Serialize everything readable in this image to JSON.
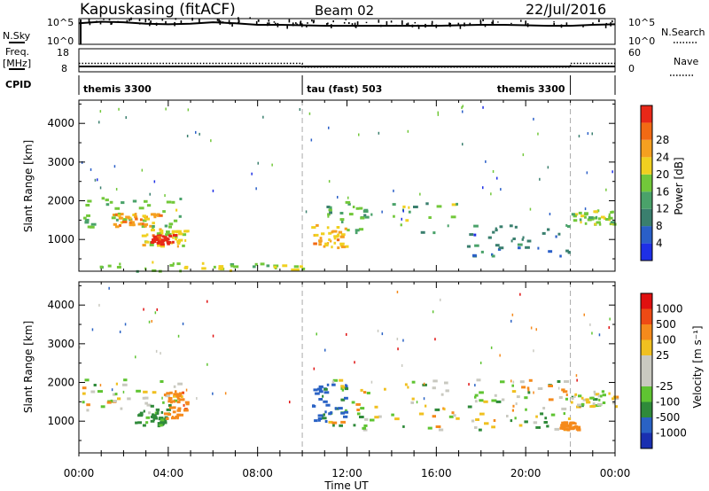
{
  "header": {
    "station": "Kapuskasing (fitACF)",
    "beam": "Beam 02",
    "date": "22/Jul/2016"
  },
  "strips": {
    "nsky_label": "N.Sky",
    "nsky_ticks": [
      "10^5",
      "10^0"
    ],
    "nsearch_label": "N.Search",
    "nsearch_ticks": [
      "10^5",
      "10^0"
    ],
    "freq_label": "Freq.",
    "freq_unit": "[MHz]",
    "freq_ticks": [
      "18",
      "8"
    ],
    "nave_label": "Nave",
    "nave_ticks": [
      "60",
      "0"
    ],
    "cpid_label": "CPID",
    "cpid_segments": [
      {
        "label": "themis 3300",
        "start_hour": 0,
        "end_hour": 10
      },
      {
        "label": "tau (fast) 503",
        "start_hour": 10,
        "end_hour": 22
      },
      {
        "label": "themis 3300",
        "start_hour": 22,
        "end_hour": 24
      }
    ]
  },
  "axes": {
    "xlabel": "Time UT",
    "ylabel_top": "Slant Range [km]",
    "ylabel_bottom": "Slant Range [km]",
    "xticks": [
      "00:00",
      "04:00",
      "08:00",
      "12:00",
      "16:00",
      "20:00",
      "00:00"
    ],
    "yticks": [
      "1000",
      "2000",
      "3000",
      "4000"
    ]
  },
  "colorbars": {
    "power": {
      "label": "Power [dB]",
      "ticks": [
        "4",
        "8",
        "12",
        "16",
        "20",
        "24",
        "28"
      ],
      "colors": [
        "#1e2fe6",
        "#2a5fc8",
        "#3a7f6e",
        "#4aa26a",
        "#72c83a",
        "#f0d020",
        "#f5a020",
        "#f26a14",
        "#e82818"
      ]
    },
    "velocity": {
      "label": "Velocity [m s⁻¹]",
      "ticks": [
        "1000",
        "500",
        "100",
        "25",
        "-25",
        "-100",
        "-500",
        "-1000"
      ],
      "colors": [
        "#1a2fb0",
        "#2a62c4",
        "#2f8a3a",
        "#5fc432",
        "#c9c9c0",
        "#c9c9c0",
        "#f0c020",
        "#f58a1c",
        "#ee4a14",
        "#e01010"
      ]
    }
  },
  "chart_data": [
    {
      "type": "line",
      "title": "N.Sky / N.Search",
      "x_unit": "hour UT",
      "xlim": [
        0,
        24
      ],
      "series": [
        {
          "name": "N.Sky",
          "x": [
            0,
            1,
            2,
            3,
            4,
            5,
            6,
            7,
            8,
            9,
            10,
            11,
            12,
            13,
            14,
            15,
            16,
            17,
            18,
            19,
            20,
            21,
            22,
            23,
            24
          ],
          "values": [
            4.1,
            4.4,
            4.3,
            4.0,
            3.9,
            4.0,
            4.3,
            4.1,
            3.8,
            3.8,
            3.7,
            3.6,
            3.6,
            3.6,
            3.6,
            3.6,
            3.6,
            3.7,
            3.8,
            3.8,
            3.7,
            3.6,
            3.6,
            3.8,
            3.9
          ]
        }
      ]
    },
    {
      "type": "line",
      "title": "Freq / Nave",
      "xlim": [
        0,
        24
      ],
      "series": [
        {
          "name": "Freq.",
          "x": [
            0,
            24
          ],
          "values": [
            10.3,
            10.3
          ]
        },
        {
          "name": "Nave",
          "x": [
            0,
            10,
            10,
            22,
            22,
            24
          ],
          "values": [
            22,
            22,
            12,
            12,
            22,
            22
          ]
        }
      ]
    },
    {
      "type": "heatmap",
      "title": "Power [dB]",
      "xlabel": "Time UT",
      "ylabel": "Slant Range [km]",
      "xlim": [
        0,
        24
      ],
      "ylim": [
        180,
        4600
      ],
      "zlim": [
        0,
        30
      ],
      "regions": [
        {
          "hours": [
            0.0,
            4.6
          ],
          "range_km": [
            1300,
            2100
          ],
          "dB": 14
        },
        {
          "hours": [
            1.5,
            3.6
          ],
          "range_km": [
            1350,
            1700
          ],
          "dB": 22
        },
        {
          "hours": [
            2.8,
            4.8
          ],
          "range_km": [
            850,
            1300
          ],
          "dB": 18
        },
        {
          "hours": [
            3.2,
            4.2
          ],
          "range_km": [
            900,
            1150
          ],
          "dB": 29
        },
        {
          "hours": [
            0.5,
            10.0
          ],
          "range_km": [
            200,
            450
          ],
          "dB": 16
        },
        {
          "hours": [
            10.4,
            12.0
          ],
          "range_km": [
            800,
            1400
          ],
          "dB": 20
        },
        {
          "hours": [
            11.0,
            17.0
          ],
          "range_km": [
            1200,
            2000
          ],
          "dB": 13
        },
        {
          "hours": [
            17.0,
            22.0
          ],
          "range_km": [
            600,
            1400
          ],
          "dB": 8
        },
        {
          "hours": [
            22.0,
            24.0
          ],
          "range_km": [
            1400,
            1800
          ],
          "dB": 15
        }
      ]
    },
    {
      "type": "heatmap",
      "title": "Velocity [m s⁻¹]",
      "xlabel": "Time UT",
      "ylabel": "Slant Range [km]",
      "xlim": [
        0,
        24
      ],
      "ylim": [
        180,
        4600
      ],
      "zlim": [
        -1000,
        1000
      ],
      "regions": [
        {
          "hours": [
            0.0,
            4.6
          ],
          "range_km": [
            1300,
            2100
          ],
          "m_per_s": 0
        },
        {
          "hours": [
            2.5,
            4.0
          ],
          "range_km": [
            900,
            1400
          ],
          "m_per_s": 200
        },
        {
          "hours": [
            3.8,
            4.8
          ],
          "range_km": [
            1100,
            1800
          ],
          "m_per_s": -400
        },
        {
          "hours": [
            11.0,
            22.0
          ],
          "range_km": [
            800,
            2100
          ],
          "m_per_s": 0
        },
        {
          "hours": [
            10.4,
            12.0
          ],
          "range_km": [
            1000,
            2000
          ],
          "m_per_s": 600
        },
        {
          "hours": [
            22.0,
            24.0
          ],
          "range_km": [
            1400,
            1800
          ],
          "m_per_s": 0
        },
        {
          "hours": [
            21.5,
            22.3
          ],
          "range_km": [
            800,
            1000
          ],
          "m_per_s": -300
        }
      ]
    }
  ]
}
